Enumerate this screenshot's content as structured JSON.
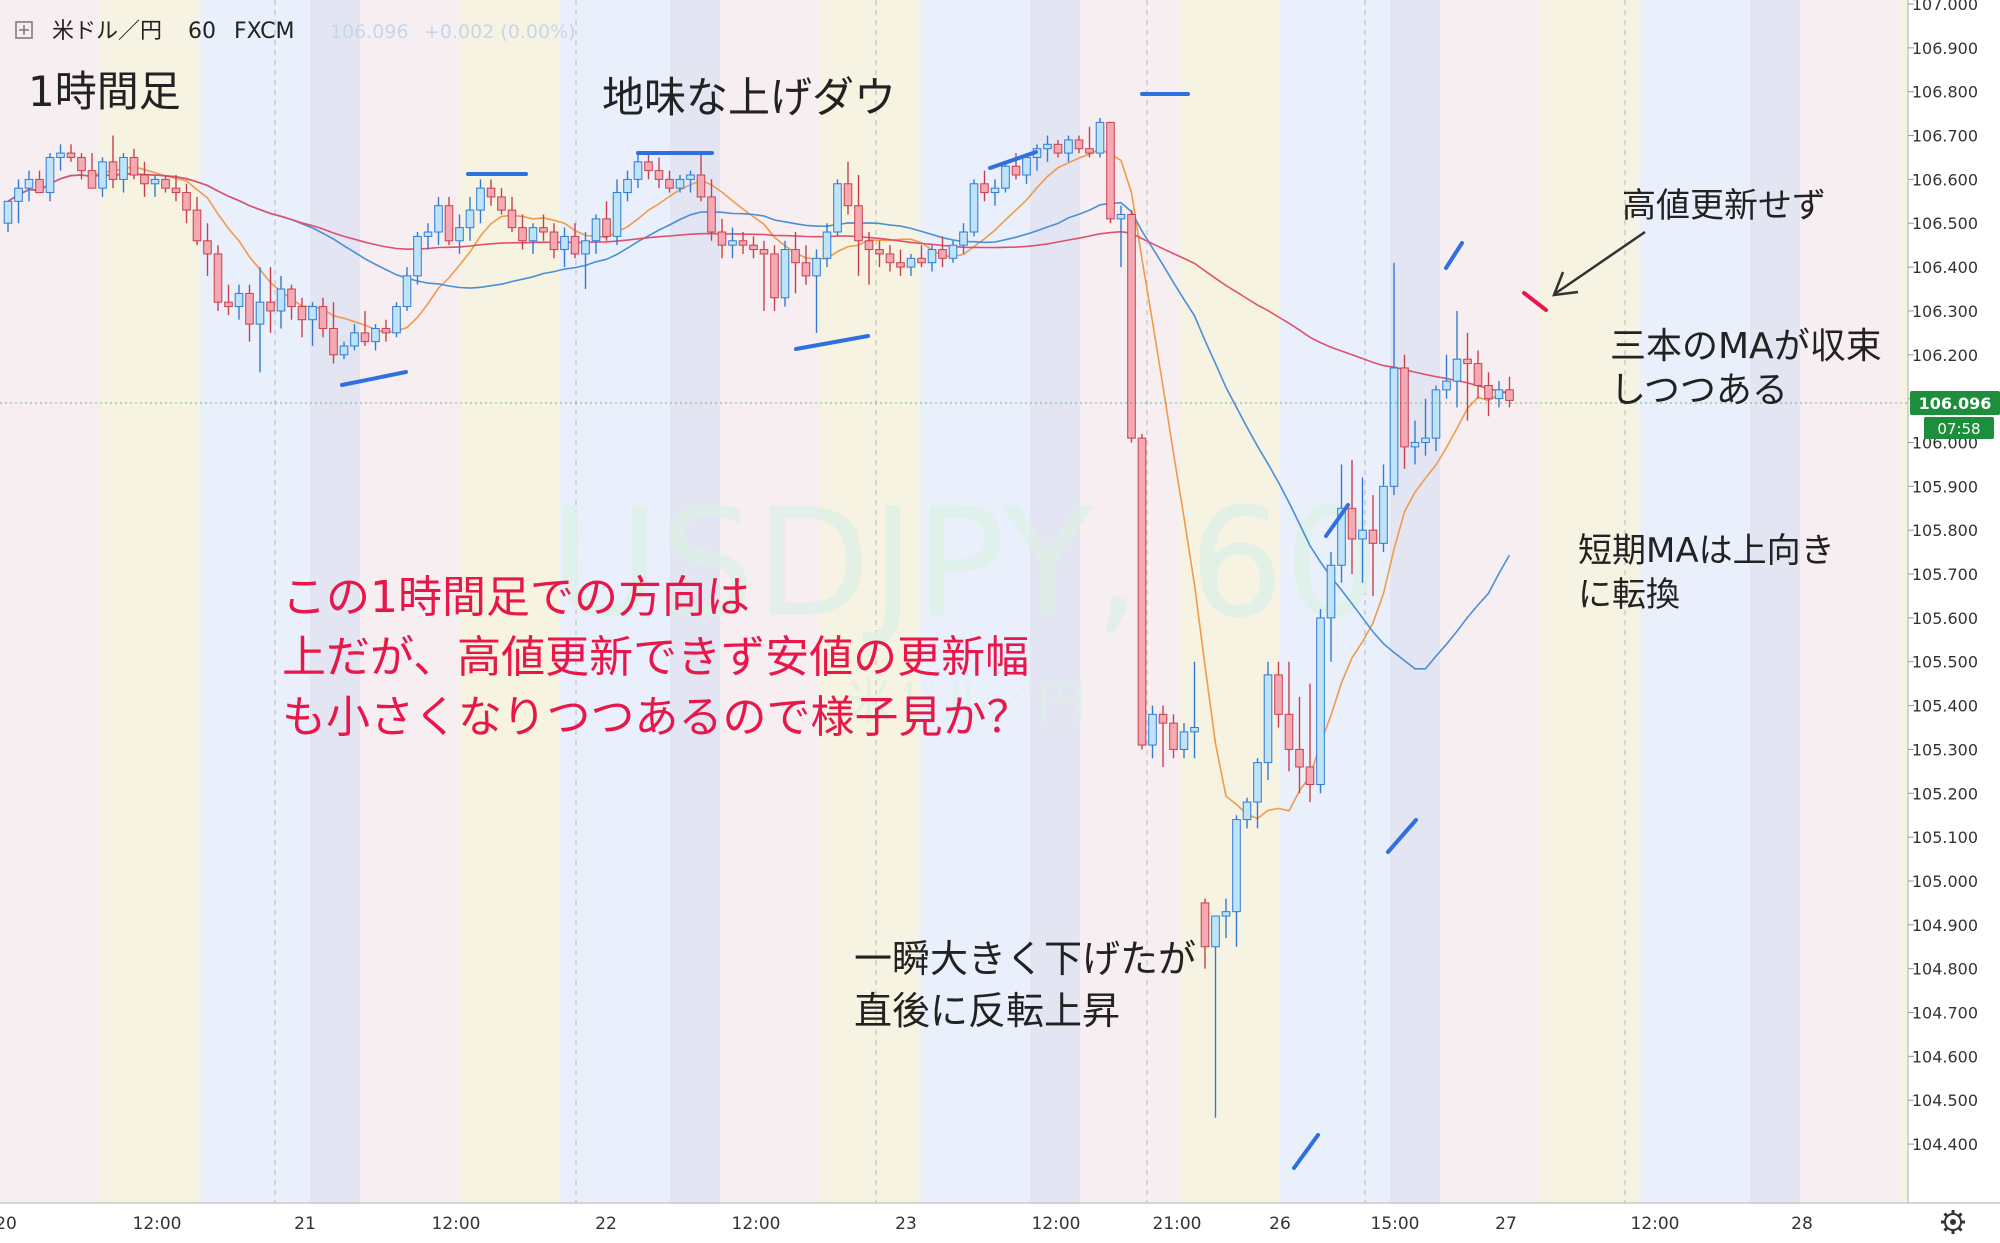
{
  "header": {
    "symbol_title": "米ドル／円",
    "interval": "60",
    "source": "FXCM",
    "quote_price": "106.096",
    "quote_change": "+0.002 (0.00%)"
  },
  "watermark": {
    "line1": "USDJPY, 60",
    "line2": "米ドル／円"
  },
  "annotations": {
    "timeframe_label": "1時間足",
    "trend_label": "地味な上げダウ",
    "high_not_updated": "高値更新せず",
    "ma_converge_1": "三本のMAが収束",
    "ma_converge_2": "しつつある",
    "short_ma_1": "短期MAは上向き",
    "short_ma_2": "に転換",
    "spike_1": "一瞬大きく下げたが",
    "spike_2": "直後に反転上昇",
    "main_comment_1": "この1時間足での方向は",
    "main_comment_2": "上だが、高値更新できず安値の更新幅",
    "main_comment_3": "も小さくなりつつあるので様子見か？"
  },
  "price_tag": {
    "price": "106.096",
    "countdown": "07:58"
  },
  "colors": {
    "up_candle": "#bfe3f7",
    "up_candle_border": "#2f7bd6",
    "down_candle": "#f5a9b3",
    "down_candle_border": "#c8404f",
    "ma_short": "#f29a4a",
    "ma_mid": "#4a8fd6",
    "ma_long": "#e0506e",
    "annotation_red": "#e8174a",
    "marker_blue": "#2f6fe0",
    "price_tag_green": "#1d8f3c"
  },
  "chart_data": {
    "type": "candlestick",
    "title": "米ドル／円 60 FXCM",
    "y_axis": {
      "range": [
        104.35,
        107.0
      ],
      "ticks": [
        "107.000",
        "106.900",
        "106.800",
        "106.700",
        "106.600",
        "106.500",
        "106.400",
        "106.300",
        "106.200",
        "106.100",
        "106.000",
        "105.900",
        "105.800",
        "105.700",
        "105.600",
        "105.500",
        "105.400",
        "105.300",
        "105.200",
        "105.100",
        "105.000",
        "104.900",
        "104.800",
        "104.700",
        "104.600",
        "104.500",
        "104.400"
      ]
    },
    "x_axis": {
      "ticks": [
        "20",
        "12:00",
        "21",
        "12:00",
        "22",
        "12:00",
        "23",
        "12:00",
        "21:00",
        "26",
        "15:00",
        "27",
        "12:00",
        "28"
      ]
    },
    "series": [
      {
        "type": "candles",
        "ohlc": [
          [
            106.5,
            106.55,
            106.48,
            106.55
          ],
          [
            106.55,
            106.6,
            106.5,
            106.58
          ],
          [
            106.58,
            106.62,
            106.55,
            106.6
          ],
          [
            106.6,
            106.62,
            106.57,
            106.57
          ],
          [
            106.57,
            106.66,
            106.55,
            106.65
          ],
          [
            106.65,
            106.68,
            106.62,
            106.66
          ],
          [
            106.66,
            106.68,
            106.64,
            106.65
          ],
          [
            106.65,
            106.66,
            106.6,
            106.62
          ],
          [
            106.62,
            106.66,
            106.58,
            106.58
          ],
          [
            106.58,
            106.65,
            106.56,
            106.64
          ],
          [
            106.64,
            106.7,
            106.58,
            106.6
          ],
          [
            106.6,
            106.66,
            106.57,
            106.65
          ],
          [
            106.65,
            106.67,
            106.6,
            106.61
          ],
          [
            106.61,
            106.64,
            106.56,
            106.59
          ],
          [
            106.59,
            106.61,
            106.56,
            106.6
          ],
          [
            106.6,
            106.61,
            106.57,
            106.58
          ],
          [
            106.58,
            106.61,
            106.55,
            106.57
          ],
          [
            106.57,
            106.59,
            106.5,
            106.53
          ],
          [
            106.53,
            106.56,
            106.45,
            106.46
          ],
          [
            106.46,
            106.5,
            106.38,
            106.43
          ],
          [
            106.43,
            106.45,
            106.3,
            106.32
          ],
          [
            106.32,
            106.36,
            106.29,
            106.31
          ],
          [
            106.31,
            106.36,
            106.28,
            106.34
          ],
          [
            106.34,
            106.36,
            106.23,
            106.27
          ],
          [
            106.27,
            106.4,
            106.16,
            106.32
          ],
          [
            106.32,
            106.4,
            106.25,
            106.3
          ],
          [
            106.3,
            106.38,
            106.26,
            106.35
          ],
          [
            106.35,
            106.36,
            106.28,
            106.31
          ],
          [
            106.31,
            106.33,
            106.24,
            106.28
          ],
          [
            106.28,
            106.32,
            106.22,
            106.31
          ],
          [
            106.31,
            106.33,
            106.24,
            106.26
          ],
          [
            106.26,
            106.32,
            106.18,
            106.2
          ],
          [
            106.2,
            106.23,
            106.19,
            106.22
          ],
          [
            106.22,
            106.27,
            106.21,
            106.25
          ],
          [
            106.25,
            106.3,
            106.22,
            106.23
          ],
          [
            106.23,
            106.27,
            106.21,
            106.26
          ],
          [
            106.26,
            106.28,
            106.23,
            106.25
          ],
          [
            106.25,
            106.32,
            106.24,
            106.31
          ],
          [
            106.31,
            106.4,
            106.3,
            106.38
          ],
          [
            106.38,
            106.48,
            106.36,
            106.47
          ],
          [
            106.47,
            106.5,
            106.44,
            106.48
          ],
          [
            106.48,
            106.56,
            106.45,
            106.54
          ],
          [
            106.54,
            106.56,
            106.45,
            106.46
          ],
          [
            106.46,
            106.52,
            106.43,
            106.49
          ],
          [
            106.49,
            106.56,
            106.46,
            106.53
          ],
          [
            106.53,
            106.6,
            106.5,
            106.58
          ],
          [
            106.58,
            106.6,
            106.54,
            106.56
          ],
          [
            106.56,
            106.58,
            106.52,
            106.53
          ],
          [
            106.53,
            106.56,
            106.48,
            106.49
          ],
          [
            106.49,
            106.52,
            106.44,
            106.46
          ],
          [
            106.46,
            106.5,
            106.43,
            106.49
          ],
          [
            106.49,
            106.52,
            106.46,
            106.48
          ],
          [
            106.48,
            106.5,
            106.42,
            106.44
          ],
          [
            106.44,
            106.49,
            106.4,
            106.47
          ],
          [
            106.47,
            106.5,
            106.42,
            106.43
          ],
          [
            106.43,
            106.48,
            106.35,
            106.46
          ],
          [
            106.46,
            106.52,
            106.43,
            106.51
          ],
          [
            106.51,
            106.55,
            106.46,
            106.47
          ],
          [
            106.47,
            106.6,
            106.45,
            106.57
          ],
          [
            106.57,
            106.62,
            106.55,
            106.6
          ],
          [
            106.6,
            106.66,
            106.58,
            106.64
          ],
          [
            106.64,
            106.66,
            106.6,
            106.62
          ],
          [
            106.62,
            106.65,
            106.58,
            106.6
          ],
          [
            106.6,
            106.62,
            106.57,
            106.58
          ],
          [
            106.58,
            106.61,
            106.57,
            106.6
          ],
          [
            106.6,
            106.62,
            106.57,
            106.61
          ],
          [
            106.61,
            106.66,
            106.55,
            106.56
          ],
          [
            106.56,
            106.6,
            106.46,
            106.48
          ],
          [
            106.48,
            106.51,
            106.42,
            106.45
          ],
          [
            106.45,
            106.49,
            106.42,
            106.46
          ],
          [
            106.46,
            106.48,
            106.43,
            106.45
          ],
          [
            106.45,
            106.47,
            106.42,
            106.44
          ],
          [
            106.44,
            106.46,
            106.3,
            106.43
          ],
          [
            106.43,
            106.45,
            106.3,
            106.33
          ],
          [
            106.33,
            106.46,
            106.31,
            106.44
          ],
          [
            106.44,
            106.48,
            106.34,
            106.41
          ],
          [
            106.41,
            106.45,
            106.36,
            106.38
          ],
          [
            106.38,
            106.44,
            106.25,
            106.42
          ],
          [
            106.42,
            106.5,
            106.4,
            106.48
          ],
          [
            106.48,
            106.6,
            106.47,
            106.59
          ],
          [
            106.59,
            106.64,
            106.52,
            106.54
          ],
          [
            106.54,
            106.61,
            106.38,
            106.46
          ],
          [
            106.46,
            106.48,
            106.36,
            106.44
          ],
          [
            106.44,
            106.46,
            106.4,
            106.43
          ],
          [
            106.43,
            106.45,
            106.39,
            106.41
          ],
          [
            106.41,
            106.44,
            106.38,
            106.4
          ],
          [
            106.4,
            106.43,
            106.38,
            106.42
          ],
          [
            106.42,
            106.45,
            106.4,
            106.41
          ],
          [
            106.41,
            106.45,
            106.39,
            106.44
          ],
          [
            106.44,
            106.47,
            106.4,
            106.42
          ],
          [
            106.42,
            106.46,
            106.41,
            106.45
          ],
          [
            106.45,
            106.5,
            106.43,
            106.48
          ],
          [
            106.48,
            106.6,
            106.47,
            106.59
          ],
          [
            106.59,
            106.62,
            106.55,
            106.57
          ],
          [
            106.57,
            106.6,
            106.54,
            106.58
          ],
          [
            106.58,
            106.64,
            106.57,
            106.63
          ],
          [
            106.63,
            106.66,
            106.6,
            106.61
          ],
          [
            106.61,
            106.66,
            106.59,
            106.65
          ],
          [
            106.65,
            106.68,
            106.62,
            106.67
          ],
          [
            106.67,
            106.7,
            106.64,
            106.68
          ],
          [
            106.68,
            106.69,
            106.65,
            106.66
          ],
          [
            106.66,
            106.7,
            106.64,
            106.69
          ],
          [
            106.69,
            106.7,
            106.66,
            106.67
          ],
          [
            106.67,
            106.72,
            106.65,
            106.66
          ],
          [
            106.66,
            106.74,
            106.65,
            106.73
          ],
          [
            106.73,
            106.73,
            106.5,
            106.51
          ],
          [
            106.51,
            106.54,
            106.4,
            106.52
          ],
          [
            106.52,
            106.53,
            106.0,
            106.01
          ],
          [
            106.01,
            106.02,
            105.3,
            105.31
          ],
          [
            105.31,
            105.4,
            105.28,
            105.38
          ],
          [
            105.38,
            105.4,
            105.26,
            105.36
          ],
          [
            105.36,
            105.38,
            105.28,
            105.3
          ],
          [
            105.3,
            105.36,
            105.28,
            105.34
          ],
          [
            105.34,
            105.5,
            105.28,
            105.35
          ],
          [
            104.95,
            104.96,
            104.8,
            104.85
          ],
          [
            104.85,
            104.91,
            104.46,
            104.92
          ],
          [
            104.92,
            104.96,
            104.87,
            104.93
          ],
          [
            104.93,
            105.15,
            104.85,
            105.14
          ],
          [
            105.14,
            105.19,
            105.12,
            105.18
          ],
          [
            105.18,
            105.28,
            105.12,
            105.27
          ],
          [
            105.27,
            105.5,
            105.23,
            105.47
          ],
          [
            105.47,
            105.5,
            105.35,
            105.38
          ],
          [
            105.38,
            105.5,
            105.25,
            105.3
          ],
          [
            105.3,
            105.42,
            105.2,
            105.26
          ],
          [
            105.26,
            105.45,
            105.18,
            105.22
          ],
          [
            105.22,
            105.62,
            105.2,
            105.6
          ],
          [
            105.6,
            105.75,
            105.5,
            105.72
          ],
          [
            105.72,
            105.95,
            105.68,
            105.85
          ],
          [
            105.85,
            105.96,
            105.7,
            105.78
          ],
          [
            105.78,
            105.92,
            105.68,
            105.8
          ],
          [
            105.8,
            105.88,
            105.65,
            105.77
          ],
          [
            105.77,
            105.95,
            105.75,
            105.9
          ],
          [
            105.9,
            106.41,
            105.88,
            106.17
          ],
          [
            106.17,
            106.2,
            105.94,
            105.99
          ],
          [
            105.99,
            106.05,
            105.95,
            106.0
          ],
          [
            106.0,
            106.1,
            105.97,
            106.01
          ],
          [
            106.01,
            106.13,
            105.98,
            106.12
          ],
          [
            106.12,
            106.2,
            106.1,
            106.14
          ],
          [
            106.14,
            106.3,
            106.08,
            106.19
          ],
          [
            106.19,
            106.25,
            106.05,
            106.18
          ],
          [
            106.18,
            106.21,
            106.1,
            106.13
          ],
          [
            106.13,
            106.16,
            106.06,
            106.1
          ],
          [
            106.1,
            106.14,
            106.08,
            106.12
          ],
          [
            106.12,
            106.15,
            106.08,
            106.096
          ]
        ]
      }
    ]
  }
}
